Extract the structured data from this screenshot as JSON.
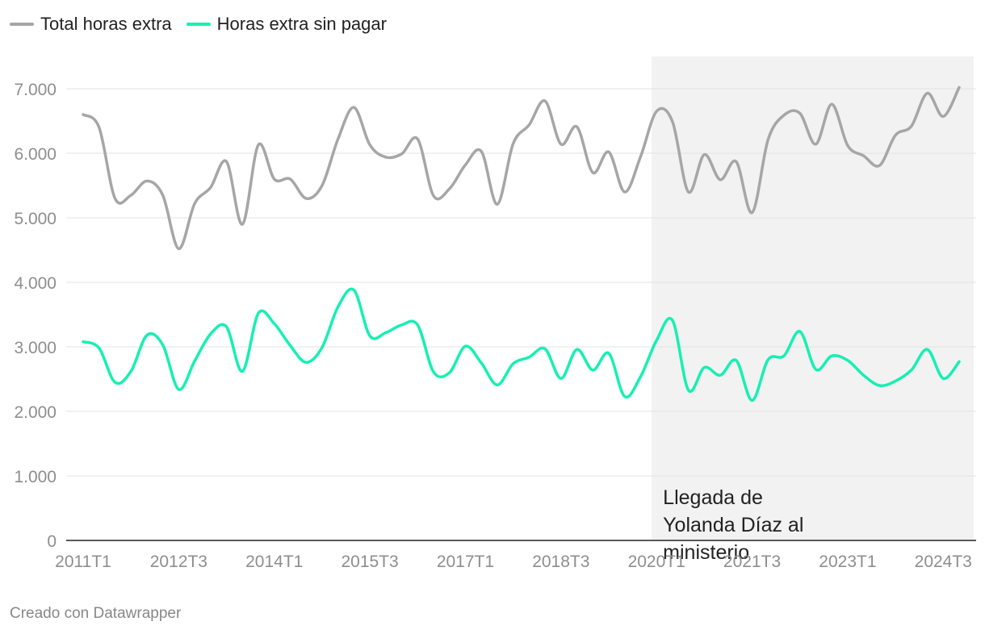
{
  "legend": {
    "items": [
      {
        "label": "Total horas extra",
        "color": "#a6a6a6"
      },
      {
        "label": "Horas extra sin pagar",
        "color": "#16f0b2"
      }
    ]
  },
  "footer": "Creado con Datawrapper",
  "chart_data": {
    "type": "line",
    "x_ticks": [
      "2011T1",
      "2012T3",
      "2014T1",
      "2015T3",
      "2017T1",
      "2018T3",
      "2020T1",
      "2021T3",
      "2023T1",
      "2024T3"
    ],
    "y_ticks": [
      "0",
      "1.000",
      "2.000",
      "3.000",
      "4.000",
      "5.000",
      "6.000",
      "7.000"
    ],
    "ylim": [
      0,
      7000
    ],
    "x_periods": [
      "2011T1",
      "2011T2",
      "2011T3",
      "2011T4",
      "2012T1",
      "2012T2",
      "2012T3",
      "2012T4",
      "2013T1",
      "2013T2",
      "2013T3",
      "2013T4",
      "2014T1",
      "2014T2",
      "2014T3",
      "2014T4",
      "2015T1",
      "2015T2",
      "2015T3",
      "2015T4",
      "2016T1",
      "2016T2",
      "2016T3",
      "2016T4",
      "2017T1",
      "2017T2",
      "2017T3",
      "2017T4",
      "2018T1",
      "2018T2",
      "2018T3",
      "2018T4",
      "2019T1",
      "2019T2",
      "2019T3",
      "2019T4",
      "2020T1",
      "2020T2",
      "2020T3",
      "2020T4",
      "2021T1",
      "2021T2",
      "2021T3",
      "2021T4",
      "2022T1",
      "2022T2",
      "2022T3",
      "2022T4",
      "2023T1",
      "2023T2",
      "2023T3",
      "2023T4",
      "2024T1",
      "2024T2",
      "2024T3",
      "2024T4"
    ],
    "series": [
      {
        "name": "Total horas extra",
        "color": "#a6a6a6",
        "values": [
          6600,
          6400,
          5300,
          5350,
          5570,
          5350,
          4520,
          5220,
          5470,
          5870,
          4900,
          6130,
          5600,
          5600,
          5300,
          5500,
          6220,
          6710,
          6130,
          5940,
          5990,
          6220,
          5340,
          5450,
          5820,
          6030,
          5210,
          6150,
          6440,
          6810,
          6140,
          6410,
          5700,
          6020,
          5400,
          5950,
          6650,
          6490,
          5400,
          5980,
          5590,
          5870,
          5080,
          6210,
          6590,
          6620,
          6140,
          6760,
          6120,
          5960,
          5810,
          6280,
          6420,
          6930,
          6570,
          7020
        ]
      },
      {
        "name": "Horas extra sin pagar",
        "color": "#16f0b2",
        "values": [
          3080,
          2980,
          2450,
          2620,
          3180,
          3030,
          2340,
          2780,
          3200,
          3310,
          2620,
          3520,
          3360,
          3020,
          2760,
          2990,
          3620,
          3880,
          3170,
          3220,
          3340,
          3340,
          2610,
          2600,
          3010,
          2750,
          2410,
          2740,
          2840,
          2970,
          2510,
          2960,
          2640,
          2900,
          2230,
          2540,
          3100,
          3410,
          2330,
          2680,
          2560,
          2790,
          2170,
          2800,
          2860,
          3240,
          2650,
          2860,
          2790,
          2560,
          2400,
          2470,
          2640,
          2960,
          2510,
          2770
        ]
      }
    ],
    "highlight": {
      "from": "2020T1",
      "to": "2024T4",
      "label": "Llegada de Yolanda Díaz al ministerio",
      "label_lines": [
        "Llegada de",
        "Yolanda Díaz al",
        "ministerio"
      ]
    }
  }
}
